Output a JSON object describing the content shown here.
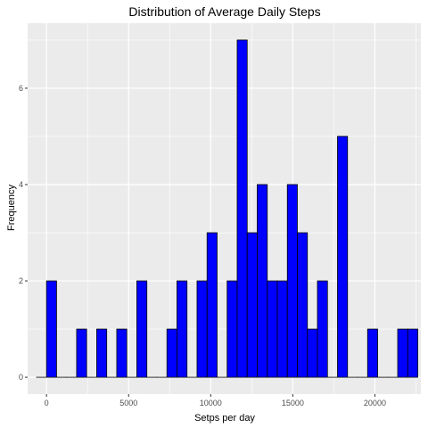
{
  "chart_data": {
    "type": "bar",
    "title": "Distribution of Average Daily Steps",
    "xlabel": "Setps per day",
    "ylabel": "Frequency",
    "bin_width": 611,
    "xlim": [
      -1150,
      22800
    ],
    "ylim": [
      -0.35,
      7.35
    ],
    "x_ticks": [
      0,
      5000,
      10000,
      15000,
      20000
    ],
    "x_tick_labels": [
      "0",
      "5000",
      "10000",
      "15000",
      "20000"
    ],
    "y_ticks": [
      0,
      2,
      4,
      6
    ],
    "y_tick_labels": [
      "0",
      "2",
      "4",
      "6"
    ],
    "bins": [
      {
        "x": -306,
        "count": 0
      },
      {
        "x": 306,
        "count": 2
      },
      {
        "x": 917,
        "count": 0
      },
      {
        "x": 1528,
        "count": 0
      },
      {
        "x": 2139,
        "count": 1
      },
      {
        "x": 2750,
        "count": 0
      },
      {
        "x": 3361,
        "count": 1
      },
      {
        "x": 3972,
        "count": 0
      },
      {
        "x": 4583,
        "count": 1
      },
      {
        "x": 5194,
        "count": 0
      },
      {
        "x": 5806,
        "count": 2
      },
      {
        "x": 6417,
        "count": 0
      },
      {
        "x": 7028,
        "count": 0
      },
      {
        "x": 7639,
        "count": 1
      },
      {
        "x": 8250,
        "count": 2
      },
      {
        "x": 8861,
        "count": 0
      },
      {
        "x": 9472,
        "count": 2
      },
      {
        "x": 10083,
        "count": 3
      },
      {
        "x": 10694,
        "count": 0
      },
      {
        "x": 11306,
        "count": 2
      },
      {
        "x": 11917,
        "count": 7
      },
      {
        "x": 12528,
        "count": 3
      },
      {
        "x": 13139,
        "count": 4
      },
      {
        "x": 13750,
        "count": 2
      },
      {
        "x": 14361,
        "count": 2
      },
      {
        "x": 14972,
        "count": 4
      },
      {
        "x": 15583,
        "count": 3
      },
      {
        "x": 16194,
        "count": 1
      },
      {
        "x": 16806,
        "count": 2
      },
      {
        "x": 17417,
        "count": 0
      },
      {
        "x": 18028,
        "count": 5
      },
      {
        "x": 18639,
        "count": 0
      },
      {
        "x": 19250,
        "count": 0
      },
      {
        "x": 19861,
        "count": 1
      },
      {
        "x": 20472,
        "count": 0
      },
      {
        "x": 21083,
        "count": 0
      },
      {
        "x": 21694,
        "count": 1
      },
      {
        "x": 22306,
        "count": 1
      }
    ],
    "grid": true,
    "colors": {
      "panel": "#ebebeb",
      "grid": "#ffffff",
      "bar_fill": "#0000ff",
      "bar_outline": "#000000"
    }
  }
}
